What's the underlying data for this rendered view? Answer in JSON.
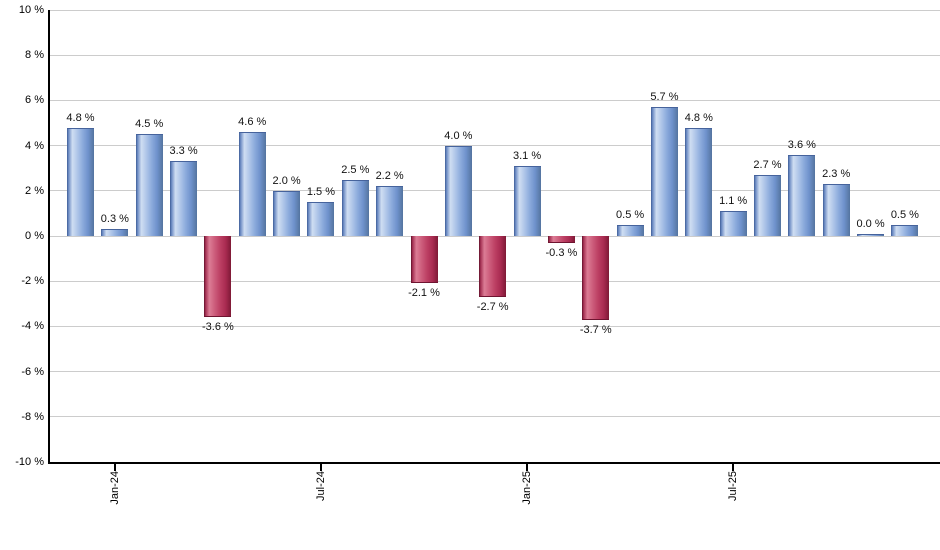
{
  "chart_data": {
    "type": "bar",
    "title": "",
    "xlabel": "",
    "ylabel": "",
    "ylim": [
      -10,
      10
    ],
    "y_tick_step": 2,
    "grid": true,
    "legend_position": "none",
    "y_tick_labels": [
      "10 %",
      "8 %",
      "6 %",
      "4 %",
      "2 %",
      "0 %",
      "-2 %",
      "-4 %",
      "-6 %",
      "-8 %",
      "-10 %"
    ],
    "x_tick_labels": [
      {
        "label": "Jan-24",
        "bar_index": 1
      },
      {
        "label": "Jul-24",
        "bar_index": 7
      },
      {
        "label": "Jan-25",
        "bar_index": 13
      },
      {
        "label": "Jul-25",
        "bar_index": 19
      }
    ],
    "values": [
      4.8,
      0.3,
      4.5,
      3.3,
      -3.6,
      4.6,
      2.0,
      1.5,
      2.5,
      2.2,
      -2.1,
      4.0,
      -2.7,
      3.1,
      -0.3,
      -3.7,
      0.5,
      5.7,
      4.8,
      1.1,
      2.7,
      3.6,
      2.3,
      0.0,
      0.5
    ],
    "value_labels": [
      "4.8 %",
      "0.3 %",
      "4.5 %",
      "3.3 %",
      "-3.6 %",
      "4.6 %",
      "2.0 %",
      "1.5 %",
      "2.5 %",
      "2.2 %",
      "-2.1 %",
      "4.0 %",
      "-2.7 %",
      "3.1 %",
      "-0.3 %",
      "-3.7 %",
      "0.5 %",
      "5.7 %",
      "4.8 %",
      "1.1 %",
      "2.7 %",
      "3.6 %",
      "2.3 %",
      "0.0 %",
      "0.5 %"
    ],
    "colors": {
      "positive_bar": "#7b9cd3",
      "negative_bar": "#c23b60",
      "gridline": "#cccccc",
      "axis": "#000000",
      "label_text": "#111111"
    }
  }
}
